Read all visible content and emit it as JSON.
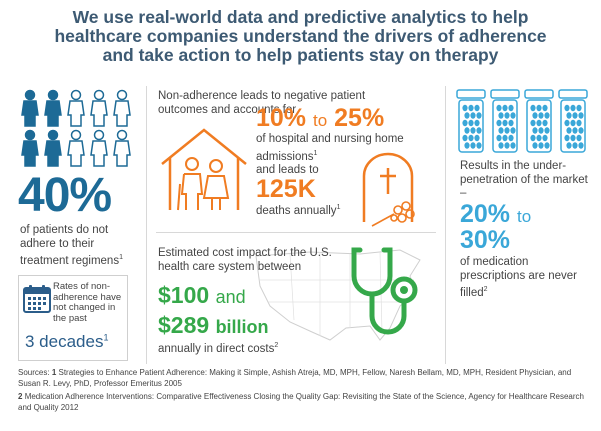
{
  "headline": {
    "line1": "We use real-world data and predictive analytics to help",
    "line2": "healthcare companies understand the drivers of adherence",
    "line3": "and take action to help patients stay on therapy"
  },
  "left": {
    "stat": "40%",
    "desc": "of patients do not adhere to their treatment regimens",
    "desc_sup": "1",
    "calendar_text": "Rates of non-adherence have not changed in the past",
    "decades": "3 decades",
    "decades_sup": "1"
  },
  "middle_top": {
    "intro": "Non-adherence leads to negative patient outcomes and accounts for",
    "range_low": "10%",
    "range_to": "to",
    "range_high": "25%",
    "hosp_text": "of hospital and nursing home admissions",
    "hosp_sup": "1",
    "leads_to": "and leads to",
    "deaths_stat": "125K",
    "deaths_text": "deaths annually",
    "deaths_sup": "1"
  },
  "middle_bottom": {
    "intro": "Estimated cost impact for the U.S. health care system between",
    "low": "$100",
    "and": "and",
    "high": "$289",
    "billion": "billion",
    "annual": "annually in direct costs",
    "annual_sup": "2"
  },
  "right": {
    "desc": "Results in the under-penetration of the market –",
    "low": "20%",
    "to": "to",
    "high": "30%",
    "desc2": "of medication prescriptions are never filled",
    "desc2_sup": "2"
  },
  "sources": {
    "label": "Sources:",
    "n1": "1",
    "s1": "Strategies to Enhance Patient Adherence: Making it Simple, Ashish Atreja, MD, MPH, Fellow, Naresh Bellam, MD, MPH, Resident Physician, and Susan R. Levy, PhD, Professor Emeritus 2005",
    "n2": "2",
    "s2": "Medication Adherence Interventions: Comparative Effectiveness Closing the Quality Gap: Revisiting the State of the Science, Agency for Healthcare Research and Quality 2012"
  },
  "colors": {
    "headline": "#3d5a73",
    "dark_blue": "#1d6a96",
    "orange": "#f07c22",
    "green": "#35a84a",
    "light_blue": "#3aa7d8"
  },
  "icons": [
    "person-icon",
    "calendar-icon",
    "house-icon",
    "elderly-couple-icon",
    "gravestone-icon",
    "us-map-icon",
    "stethoscope-icon",
    "pill-bottle-icon"
  ]
}
